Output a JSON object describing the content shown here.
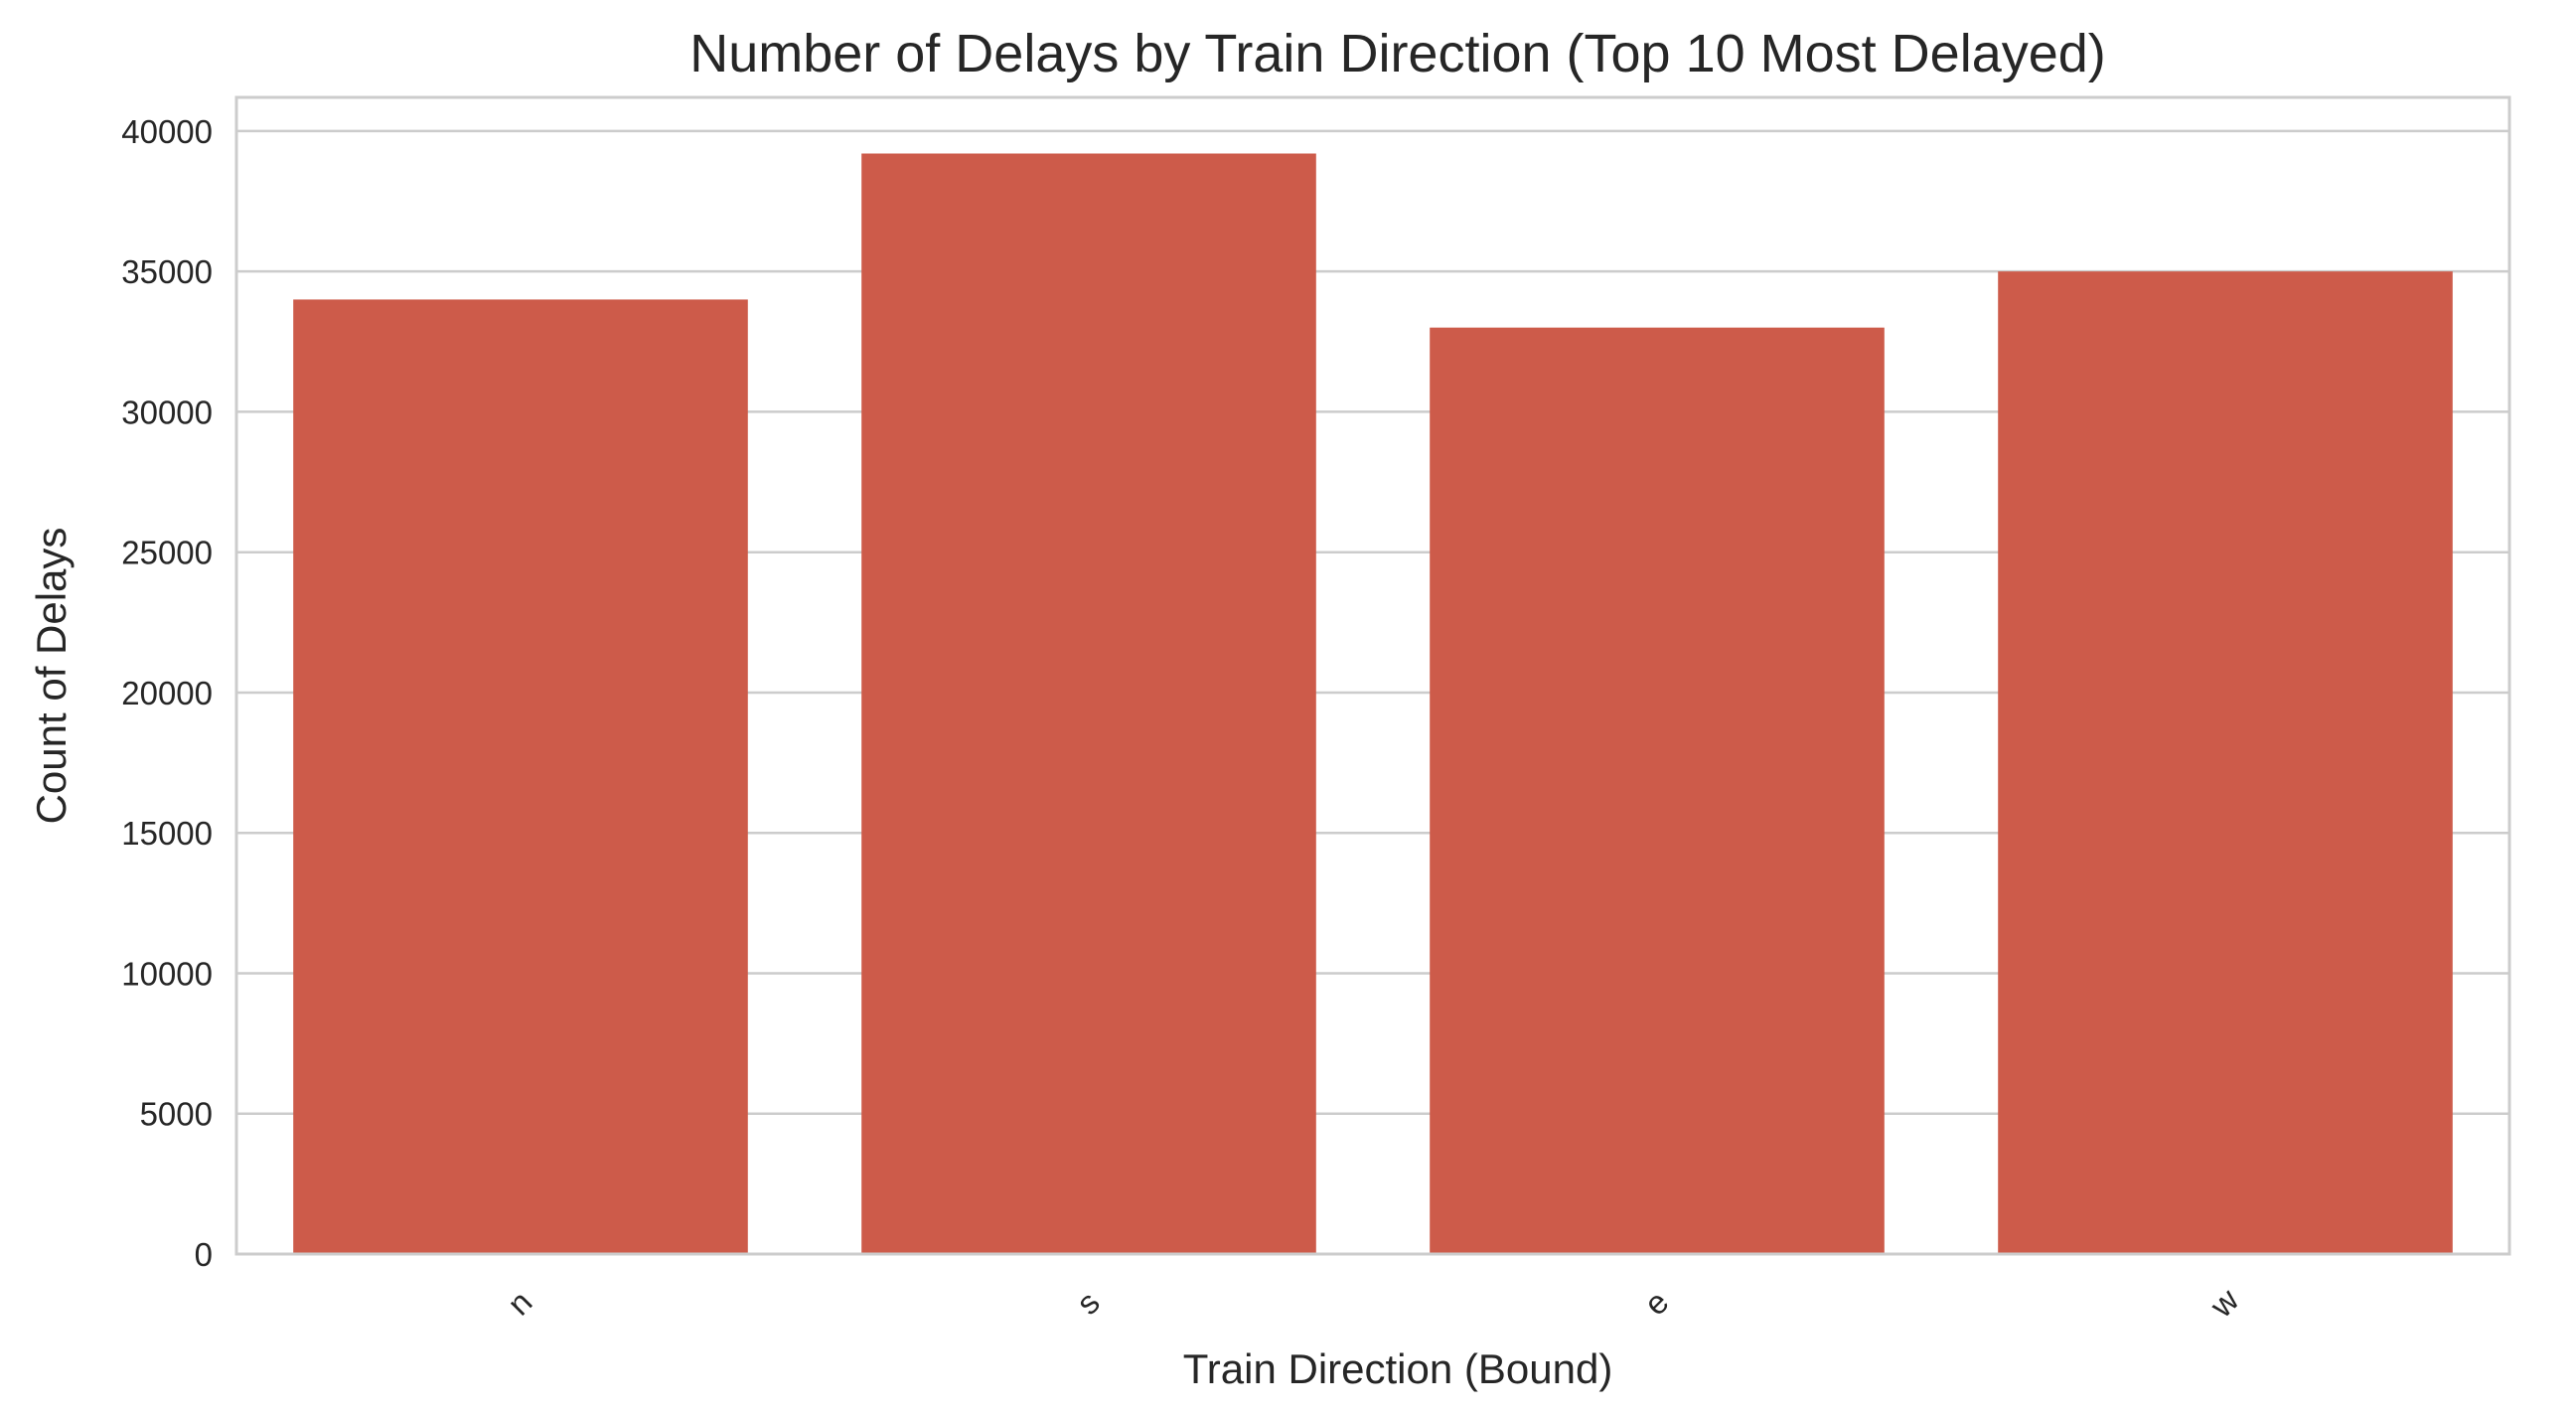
{
  "chart_data": {
    "type": "bar",
    "title": "Number of Delays by Train Direction (Top 10 Most Delayed)",
    "xlabel": "Train Direction (Bound)",
    "ylabel": "Count of Delays",
    "categories": [
      "n",
      "s",
      "e",
      "w"
    ],
    "values": [
      34000,
      39200,
      33000,
      35000
    ],
    "ylim": [
      0,
      41200
    ],
    "yticks": [
      0,
      5000,
      10000,
      15000,
      20000,
      25000,
      30000,
      35000,
      40000
    ],
    "grid": "horizontal",
    "x_tick_rotation_deg": 45,
    "legend": "none",
    "colors": {
      "bar": "#cd5b4a",
      "grid": "#cccccc",
      "spine": "#cccccc",
      "text": "#262626",
      "background": "#ffffff"
    }
  }
}
